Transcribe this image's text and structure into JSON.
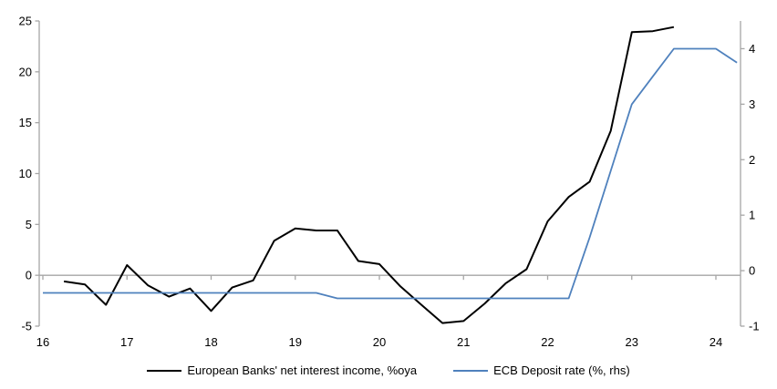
{
  "chart_data": {
    "type": "line",
    "title": "",
    "grid": "horizontal-zero-line-only",
    "legend_position": "bottom-center",
    "x_axis": {
      "tick_values": [
        16,
        17,
        18,
        19,
        20,
        21,
        22,
        23,
        24
      ],
      "tick_labels": [
        "16",
        "17",
        "18",
        "19",
        "20",
        "21",
        "22",
        "23",
        "24"
      ],
      "min": 15.96,
      "max": 24.29
    },
    "left_y_axis": {
      "ticks": [
        25,
        20,
        15,
        10,
        5,
        0,
        -5
      ],
      "min": -5,
      "max": 25
    },
    "right_y_axis": {
      "ticks": [
        4,
        3,
        2,
        1,
        0,
        -1
      ],
      "min": -1,
      "max": 4.5
    },
    "series": [
      {
        "name": "European Banks' net interest income, %oya",
        "axis": "left",
        "color": "#000000",
        "width": 2,
        "points": [
          [
            16.25,
            -0.6
          ],
          [
            16.5,
            -0.9
          ],
          [
            16.75,
            -2.9
          ],
          [
            17.0,
            1.0
          ],
          [
            17.25,
            -1.0
          ],
          [
            17.5,
            -2.1
          ],
          [
            17.75,
            -1.3
          ],
          [
            18.0,
            -3.5
          ],
          [
            18.25,
            -1.2
          ],
          [
            18.5,
            -0.5
          ],
          [
            18.75,
            3.4
          ],
          [
            19.0,
            4.6
          ],
          [
            19.25,
            4.4
          ],
          [
            19.5,
            4.4
          ],
          [
            19.75,
            1.4
          ],
          [
            20.0,
            1.1
          ],
          [
            20.25,
            -1.1
          ],
          [
            20.5,
            -2.9
          ],
          [
            20.75,
            -4.7
          ],
          [
            21.0,
            -4.5
          ],
          [
            21.25,
            -2.8
          ],
          [
            21.5,
            -0.8
          ],
          [
            21.75,
            0.6
          ],
          [
            22.0,
            5.3
          ],
          [
            22.25,
            7.7
          ],
          [
            22.5,
            9.2
          ],
          [
            22.75,
            14.2
          ],
          [
            23.0,
            23.9
          ],
          [
            23.25,
            24.0
          ],
          [
            23.5,
            24.4
          ]
        ]
      },
      {
        "name": "ECB Deposit rate (%, rhs)",
        "axis": "right",
        "color": "#4F81BD",
        "width": 1.8,
        "points": [
          [
            16.0,
            -0.4
          ],
          [
            16.25,
            -0.4
          ],
          [
            16.5,
            -0.4
          ],
          [
            16.75,
            -0.4
          ],
          [
            17.0,
            -0.4
          ],
          [
            17.25,
            -0.4
          ],
          [
            17.5,
            -0.4
          ],
          [
            17.75,
            -0.4
          ],
          [
            18.0,
            -0.4
          ],
          [
            18.25,
            -0.4
          ],
          [
            18.5,
            -0.4
          ],
          [
            18.75,
            -0.4
          ],
          [
            19.0,
            -0.4
          ],
          [
            19.25,
            -0.4
          ],
          [
            19.5,
            -0.5
          ],
          [
            19.75,
            -0.5
          ],
          [
            20.0,
            -0.5
          ],
          [
            20.25,
            -0.5
          ],
          [
            20.5,
            -0.5
          ],
          [
            20.75,
            -0.5
          ],
          [
            21.0,
            -0.5
          ],
          [
            21.25,
            -0.5
          ],
          [
            21.5,
            -0.5
          ],
          [
            21.75,
            -0.5
          ],
          [
            22.0,
            -0.5
          ],
          [
            22.25,
            -0.5
          ],
          [
            22.5,
            0.6
          ],
          [
            22.75,
            1.8
          ],
          [
            23.0,
            3.0
          ],
          [
            23.25,
            3.5
          ],
          [
            23.5,
            4.0
          ],
          [
            23.75,
            4.0
          ],
          [
            24.0,
            4.0
          ],
          [
            24.25,
            3.75
          ]
        ]
      }
    ]
  },
  "legend": {
    "items": [
      {
        "label": "European Banks' net interest income, %oya",
        "color": "#000000"
      },
      {
        "label": "ECB Deposit rate (%, rhs)",
        "color": "#4F81BD"
      }
    ]
  },
  "colors": {
    "axis": "#A6A6A6",
    "text": "#000000",
    "background": "#FFFFFF"
  }
}
